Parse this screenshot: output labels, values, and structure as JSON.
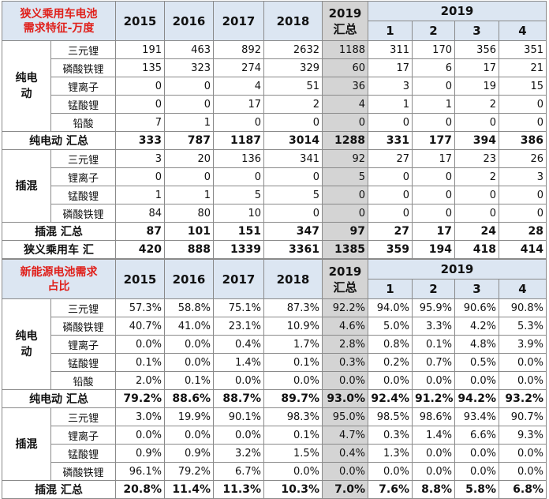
{
  "tables": [
    {
      "title_lines": [
        "狭义乘用车电池",
        "需求特征-万度"
      ],
      "years": [
        "2015",
        "2016",
        "2017",
        "2018"
      ],
      "year_total": [
        "2019",
        "汇总"
      ],
      "months_year": "2019",
      "months": [
        "1",
        "2",
        "3",
        "4"
      ],
      "groups": [
        {
          "label_lines": [
            "纯电",
            "动"
          ],
          "rows": [
            {
              "label": "三元锂",
              "values": [
                191,
                463,
                892,
                2632,
                1188,
                311,
                170,
                356,
                351
              ]
            },
            {
              "label": "磷酸铁锂",
              "values": [
                135,
                323,
                274,
                329,
                60,
                17,
                6,
                17,
                21
              ]
            },
            {
              "label": "锂离子",
              "values": [
                0,
                0,
                4,
                51,
                36,
                3,
                0,
                19,
                15
              ]
            },
            {
              "label": "锰酸锂",
              "values": [
                0,
                0,
                17,
                2,
                4,
                1,
                1,
                2,
                0
              ]
            },
            {
              "label": "铅酸",
              "values": [
                7,
                1,
                0,
                0,
                0,
                0,
                0,
                0,
                0
              ]
            }
          ],
          "total": {
            "label": "纯电动 汇总",
            "values": [
              333,
              787,
              1187,
              3014,
              1288,
              331,
              177,
              394,
              386
            ]
          }
        },
        {
          "label_lines": [
            "插混"
          ],
          "rows": [
            {
              "label": "三元锂",
              "values": [
                3,
                20,
                136,
                341,
                92,
                27,
                17,
                23,
                26
              ]
            },
            {
              "label": "锂离子",
              "values": [
                0,
                0,
                0,
                0,
                5,
                0,
                0,
                2,
                3
              ]
            },
            {
              "label": "锰酸锂",
              "values": [
                1,
                1,
                5,
                5,
                0,
                0,
                0,
                0,
                0
              ]
            },
            {
              "label": "磷酸铁锂",
              "values": [
                84,
                80,
                10,
                0,
                0,
                0,
                0,
                0,
                0
              ]
            }
          ],
          "total": {
            "label": "插混 汇总",
            "values": [
              87,
              101,
              151,
              347,
              97,
              27,
              17,
              24,
              28
            ]
          }
        }
      ],
      "grand_total": {
        "label": "狭义乘用车 汇",
        "values": [
          420,
          888,
          1339,
          3361,
          1385,
          359,
          194,
          418,
          414
        ]
      }
    },
    {
      "title_lines": [
        "新能源电池需求",
        "占比"
      ],
      "years": [
        "2015",
        "2016",
        "2017",
        "2018"
      ],
      "year_total": [
        "2019",
        "汇总"
      ],
      "months_year": "2019",
      "months": [
        "1",
        "2",
        "3",
        "4"
      ],
      "groups": [
        {
          "label_lines": [
            "纯电",
            "动"
          ],
          "rows": [
            {
              "label": "三元锂",
              "values": [
                "57.3%",
                "58.8%",
                "75.1%",
                "87.3%",
                "92.2%",
                "94.0%",
                "95.9%",
                "90.6%",
                "90.8%"
              ]
            },
            {
              "label": "磷酸铁锂",
              "values": [
                "40.7%",
                "41.0%",
                "23.1%",
                "10.9%",
                "4.6%",
                "5.0%",
                "3.3%",
                "4.2%",
                "5.3%"
              ]
            },
            {
              "label": "锂离子",
              "values": [
                "0.0%",
                "0.0%",
                "0.4%",
                "1.7%",
                "2.8%",
                "0.8%",
                "0.1%",
                "4.8%",
                "3.9%"
              ]
            },
            {
              "label": "锰酸锂",
              "values": [
                "0.1%",
                "0.0%",
                "1.4%",
                "0.1%",
                "0.3%",
                "0.2%",
                "0.7%",
                "0.5%",
                "0.0%"
              ]
            },
            {
              "label": "铅酸",
              "values": [
                "2.0%",
                "0.1%",
                "0.0%",
                "0.0%",
                "0.0%",
                "0.0%",
                "0.0%",
                "0.0%",
                "0.0%"
              ]
            }
          ],
          "total": {
            "label": "纯电动 汇总",
            "values": [
              "79.2%",
              "88.6%",
              "88.7%",
              "89.7%",
              "93.0%",
              "92.4%",
              "91.2%",
              "94.2%",
              "93.2%"
            ]
          }
        },
        {
          "label_lines": [
            "插混"
          ],
          "rows": [
            {
              "label": "三元锂",
              "values": [
                "3.0%",
                "19.9%",
                "90.1%",
                "98.3%",
                "95.0%",
                "98.5%",
                "98.6%",
                "93.4%",
                "90.7%"
              ]
            },
            {
              "label": "锂离子",
              "values": [
                "0.0%",
                "0.0%",
                "0.0%",
                "0.1%",
                "4.7%",
                "0.3%",
                "1.4%",
                "6.6%",
                "9.3%"
              ]
            },
            {
              "label": "锰酸锂",
              "values": [
                "0.9%",
                "0.9%",
                "3.2%",
                "1.5%",
                "0.4%",
                "1.3%",
                "0.0%",
                "0.0%",
                "0.0%"
              ]
            },
            {
              "label": "磷酸铁锂",
              "values": [
                "96.1%",
                "79.2%",
                "6.7%",
                "0.0%",
                "0.0%",
                "0.0%",
                "0.0%",
                "0.0%",
                "0.0%"
              ]
            }
          ],
          "total": {
            "label": "插混 汇总",
            "values": [
              "20.8%",
              "11.4%",
              "11.3%",
              "10.3%",
              "7.0%",
              "7.6%",
              "8.8%",
              "5.8%",
              "6.8%"
            ]
          }
        }
      ]
    }
  ]
}
